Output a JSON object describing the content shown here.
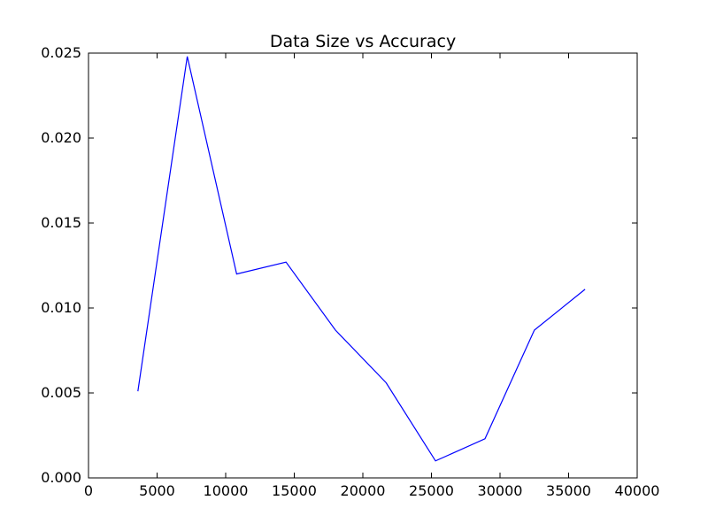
{
  "chart_data": {
    "type": "line",
    "title": "Data Size vs Accuracy",
    "xlabel": "",
    "ylabel": "",
    "xlim": [
      0,
      40000
    ],
    "ylim": [
      0,
      0.025
    ],
    "xticks": [
      0,
      5000,
      10000,
      15000,
      20000,
      25000,
      30000,
      35000,
      40000
    ],
    "xtick_labels": [
      "0",
      "5000",
      "10000",
      "15000",
      "20000",
      "25000",
      "30000",
      "35000",
      "40000"
    ],
    "yticks": [
      0,
      0.005,
      0.01,
      0.015,
      0.02,
      0.025
    ],
    "ytick_labels": [
      "0.000",
      "0.005",
      "0.010",
      "0.015",
      "0.020",
      "0.025"
    ],
    "grid": false,
    "legend": "none",
    "series": [
      {
        "color": "#0000ff",
        "x": [
          3600,
          7200,
          10800,
          14400,
          18000,
          21700,
          25300,
          28900,
          32500,
          36200
        ],
        "y": [
          0.0051,
          0.0248,
          0.012,
          0.0127,
          0.0087,
          0.0056,
          0.001,
          0.0023,
          0.0087,
          0.0111
        ]
      }
    ]
  }
}
